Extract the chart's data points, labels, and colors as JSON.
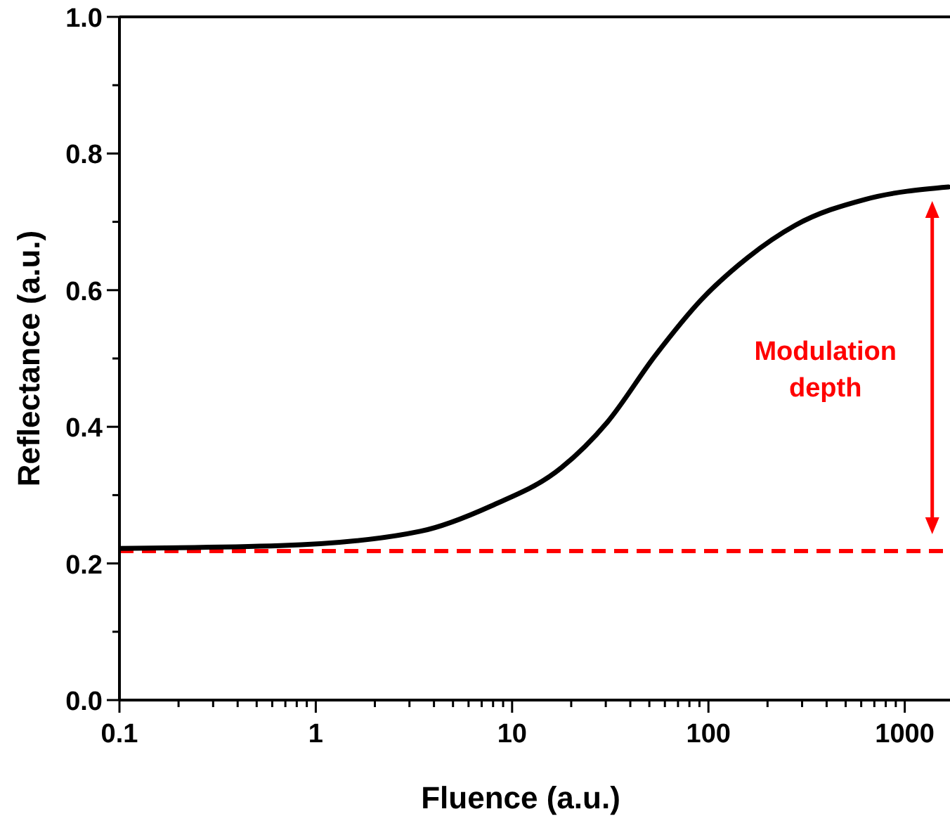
{
  "chart_data": {
    "type": "line",
    "xlabel": "Fluence (a.u.)",
    "ylabel": "Reflectance (a.u.)",
    "log": "x",
    "xlim": [
      0.1,
      1700
    ],
    "ylim": [
      0,
      1
    ],
    "xticks": [
      0.1,
      {
        "value": 0.2,
        "label": null
      },
      {
        "value": 0.3,
        "label": null
      },
      {
        "value": 0.4,
        "label": null
      },
      {
        "value": 0.5,
        "label": null
      },
      {
        "value": 0.6,
        "label": null
      },
      {
        "value": 0.7,
        "label": null
      },
      {
        "value": 0.8,
        "label": null
      },
      {
        "value": 0.9,
        "label": null
      },
      1,
      {
        "value": 2,
        "label": null
      },
      {
        "value": 3,
        "label": null
      },
      {
        "value": 4,
        "label": null
      },
      {
        "value": 5,
        "label": null
      },
      {
        "value": 6,
        "label": null
      },
      {
        "value": 7,
        "label": null
      },
      {
        "value": 8,
        "label": null
      },
      {
        "value": 9,
        "label": null
      },
      10,
      {
        "value": 20,
        "label": null
      },
      {
        "value": 30,
        "label": null
      },
      {
        "value": 40,
        "label": null
      },
      {
        "value": 50,
        "label": null
      },
      {
        "value": 60,
        "label": null
      },
      {
        "value": 70,
        "label": null
      },
      {
        "value": 80,
        "label": null
      },
      {
        "value": 90,
        "label": null
      },
      100,
      {
        "value": 200,
        "label": null
      },
      {
        "value": 300,
        "label": null
      },
      {
        "value": 400,
        "label": null
      },
      {
        "value": 500,
        "label": null
      },
      {
        "value": 600,
        "label": null
      },
      {
        "value": 700,
        "label": null
      },
      {
        "value": 800,
        "label": null
      },
      {
        "value": 900,
        "label": null
      },
      1000
    ],
    "yticks": [
      {
        "value": 0,
        "label": "0.0"
      },
      {
        "value": 0.1,
        "label": null
      },
      0.2,
      {
        "value": 0.3,
        "label": null
      },
      0.4,
      {
        "value": 0.5,
        "label": null
      },
      0.6,
      {
        "value": 0.7,
        "label": null
      },
      0.8,
      {
        "value": 0.9,
        "label": null
      },
      {
        "value": 1,
        "label": "1.0"
      }
    ],
    "grid": false,
    "marker": "none",
    "line_style": "solid",
    "series": [
      {
        "color": "#000000",
        "x": [
          0.1,
          0.66,
          3.4,
          7.8,
          17.8,
          30.6,
          53.5,
          92,
          159,
          277,
          631,
          1670
        ],
        "values": [
          0.222,
          0.226,
          0.247,
          0.284,
          0.34,
          0.407,
          0.504,
          0.586,
          0.648,
          0.695,
          0.733,
          0.751
        ]
      }
    ],
    "ref_lines": [
      {
        "axis": "y",
        "value": 0.218,
        "color": "#ff0000",
        "line_style": "dashed"
      }
    ],
    "annotations": [
      "Modulation depth"
    ]
  }
}
